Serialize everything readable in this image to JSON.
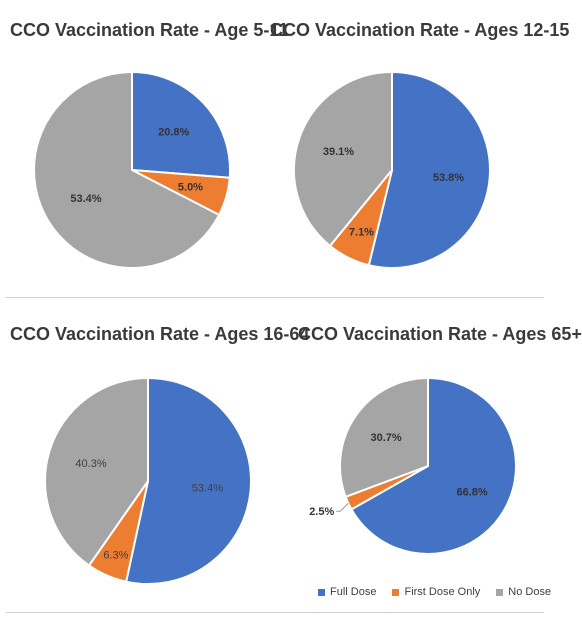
{
  "colors": {
    "full": "#4472c4",
    "first": "#ed7d31",
    "none": "#a5a5a5"
  },
  "legend": [
    "Full Dose",
    "First Dose Only",
    "No Dose"
  ],
  "chart_data": [
    {
      "type": "pie",
      "title": "CCO Vaccination Rate - Age 5-11",
      "categories": [
        "Full Dose",
        "First Dose Only",
        "No Dose"
      ],
      "values": [
        20.8,
        5.0,
        53.4
      ],
      "labels": [
        "20.8%",
        "5.0%",
        "53.4%"
      ]
    },
    {
      "type": "pie",
      "title": "CCO Vaccination Rate  - Ages 12-15",
      "categories": [
        "Full Dose",
        "First Dose Only",
        "No Dose"
      ],
      "values": [
        53.8,
        7.1,
        39.1
      ],
      "labels": [
        "53.8%",
        "7.1%",
        "39.1%"
      ]
    },
    {
      "type": "pie",
      "title": "CCO Vaccination Rate - Ages 16-64",
      "categories": [
        "Full Dose",
        "First Dose Only",
        "No Dose"
      ],
      "values": [
        53.4,
        6.3,
        40.3
      ],
      "labels": [
        "53.4%",
        "6.3%",
        "40.3%"
      ]
    },
    {
      "type": "pie",
      "title": "CCO Vaccination Rate - Ages 65+",
      "categories": [
        "Full Dose",
        "First Dose Only",
        "No Dose"
      ],
      "values": [
        66.8,
        2.5,
        30.7
      ],
      "labels": [
        "66.8%",
        "2.5%",
        "30.7%"
      ]
    }
  ]
}
